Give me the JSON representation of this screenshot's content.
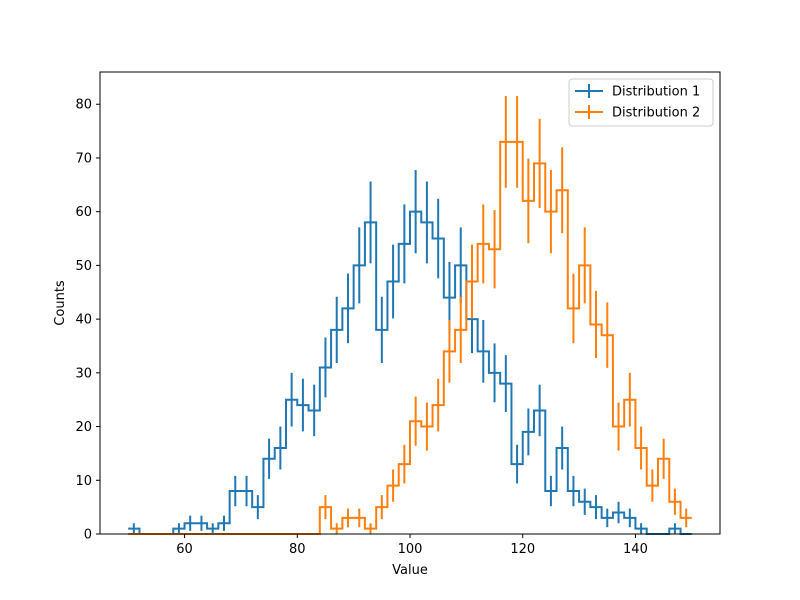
{
  "chart_data": {
    "type": "line",
    "title": "",
    "xlabel": "Value",
    "ylabel": "Counts",
    "xlim": [
      45,
      155
    ],
    "ylim": [
      0,
      86
    ],
    "xticks": [
      60,
      80,
      100,
      120,
      140
    ],
    "yticks": [
      0,
      10,
      20,
      30,
      40,
      50,
      60,
      70,
      80
    ],
    "grid": false,
    "legend": "top-right",
    "x": [
      51,
      53,
      55,
      57,
      59,
      61,
      63,
      65,
      67,
      69,
      71,
      73,
      75,
      77,
      79,
      81,
      83,
      85,
      87,
      89,
      91,
      93,
      95,
      97,
      99,
      101,
      103,
      105,
      107,
      109,
      111,
      113,
      115,
      117,
      119,
      121,
      123,
      125,
      127,
      129,
      131,
      133,
      135,
      137,
      139,
      141,
      143,
      145,
      147,
      149
    ],
    "series": [
      {
        "name": "Distribution 1",
        "color": "#1f77b4",
        "values": [
          1,
          0,
          0,
          0,
          1,
          2,
          2,
          1,
          2,
          8,
          8,
          5,
          14,
          16,
          25,
          24,
          23,
          31,
          38,
          42,
          50,
          58,
          38,
          47,
          54,
          60,
          58,
          55,
          44,
          50,
          40,
          34,
          30,
          28,
          13,
          19,
          23,
          8,
          16,
          8,
          6,
          5,
          3,
          4,
          3,
          1,
          0,
          0,
          1,
          0
        ]
      },
      {
        "name": "Distribution 2",
        "color": "#ff7f0e",
        "values": [
          0,
          0,
          0,
          0,
          0,
          0,
          0,
          0,
          0,
          0,
          0,
          0,
          0,
          0,
          0,
          0,
          0,
          5,
          1,
          3,
          3,
          1,
          5,
          9,
          13,
          21,
          20,
          24,
          34,
          38,
          47,
          54,
          53,
          73,
          73,
          62,
          69,
          60,
          64,
          42,
          50,
          39,
          37,
          20,
          25,
          16,
          9,
          14,
          6,
          3
        ]
      }
    ]
  }
}
